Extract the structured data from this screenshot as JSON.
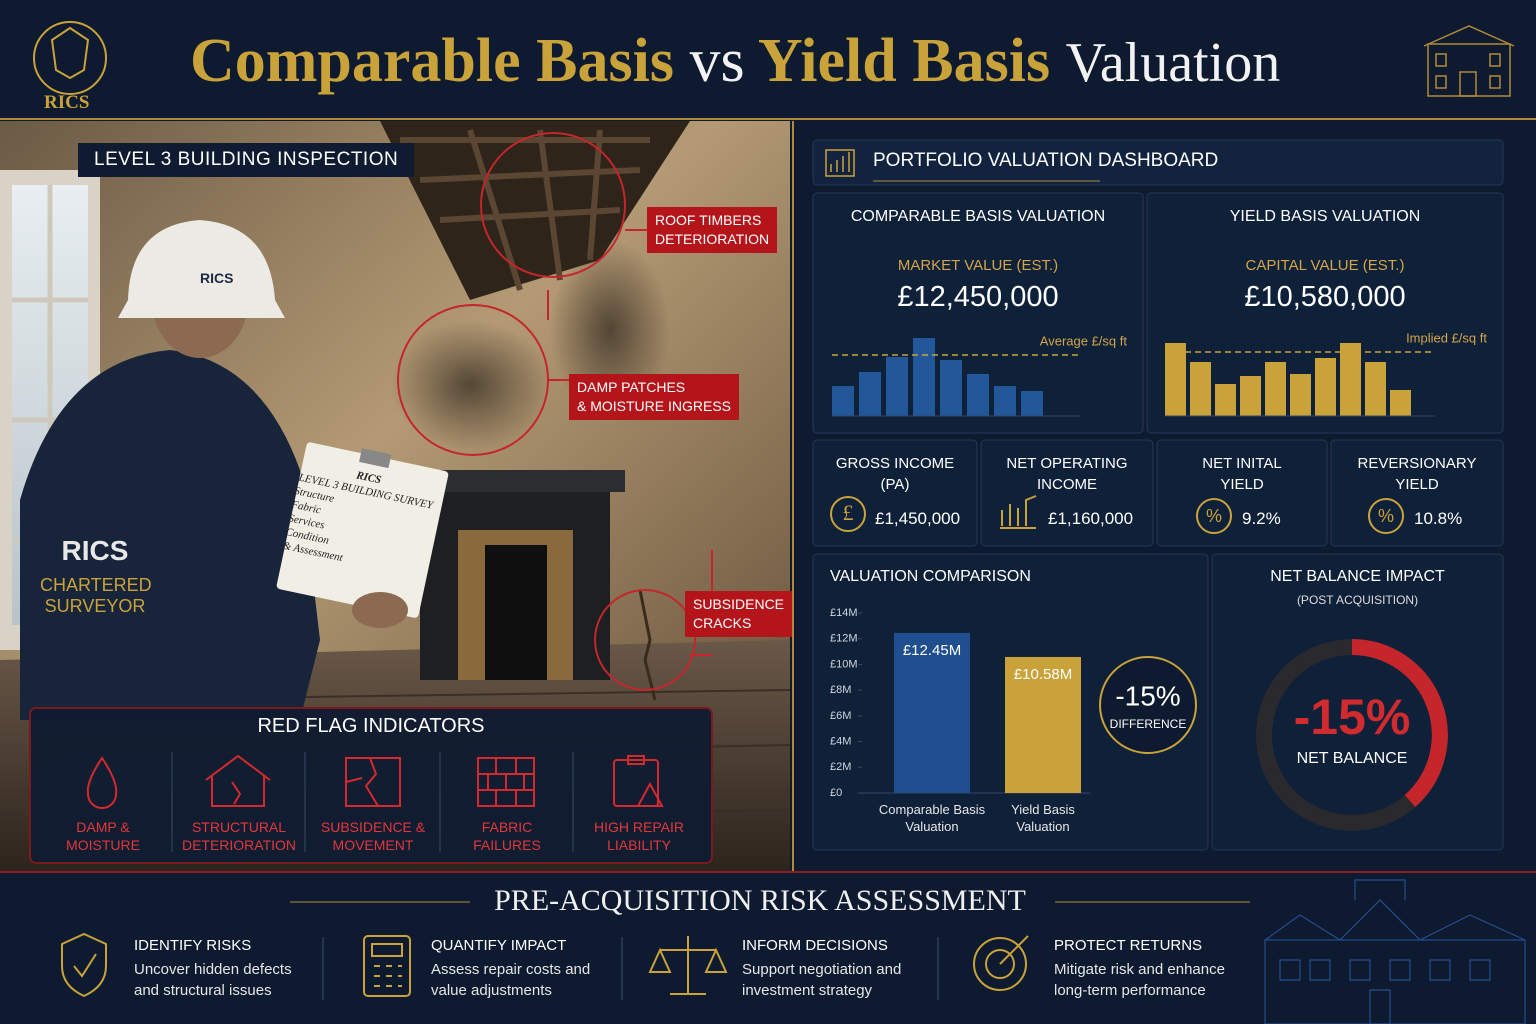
{
  "header": {
    "logo": "RICS",
    "title_a": "Comparable Basis",
    "title_b": "vs",
    "title_c": "Yield Basis",
    "title_d": "Valuation"
  },
  "inspection": {
    "badge": "LEVEL 3 BUILDING INSPECTION",
    "callouts": [
      {
        "lines": [
          "ROOF TIMBERS",
          "DETERIORATION"
        ]
      },
      {
        "lines": [
          "DAMP PATCHES",
          "& MOISTURE INGRESS"
        ]
      },
      {
        "lines": [
          "SUBSIDENCE",
          "CRACKS"
        ]
      }
    ],
    "photo_text": {
      "helmet": "RICS",
      "jacket": [
        "RICS",
        "CHARTERED",
        "SURVEYOR"
      ],
      "clipboard": [
        "RICS",
        "LEVEL 3 BUILDING SURVEY",
        "Structure",
        "Fabric",
        "Services",
        "Condition",
        "& Assessment"
      ]
    }
  },
  "red_flags": {
    "title": "RED FLAG INDICATORS",
    "items": [
      {
        "lines": [
          "DAMP &",
          "MOISTURE"
        ]
      },
      {
        "lines": [
          "STRUCTURAL",
          "DETERIORATION"
        ]
      },
      {
        "lines": [
          "SUBSIDENCE &",
          "MOVEMENT"
        ]
      },
      {
        "lines": [
          "FABRIC",
          "FAILURES"
        ]
      },
      {
        "lines": [
          "HIGH REPAIR",
          "LIABILITY"
        ]
      }
    ]
  },
  "dashboard": {
    "title": "PORTFOLIO VALUATION DASHBOARD",
    "kpis": [
      {
        "lines": [
          "GROSS INCOME",
          "(PA)"
        ],
        "value": "£1,450,000"
      },
      {
        "lines": [
          "NET OPERATING",
          "INCOME"
        ],
        "value": "£1,160,000"
      },
      {
        "lines": [
          "NET INITAL",
          "YIELD"
        ],
        "value": "9.2%"
      },
      {
        "lines": [
          "REVERSIONARY",
          "YIELD"
        ],
        "value": "10.8%"
      }
    ],
    "net_balance": {
      "title": "NET BALANCE IMPACT",
      "subtitle": "(POST ACQUISITION)",
      "value": "-15%",
      "label": "NET BALANCE"
    }
  },
  "chart_data": [
    {
      "type": "bar",
      "title": "COMPARABLE BASIS VALUATION",
      "subtitle": "MARKET VALUE (EST.)",
      "headline": "£12,450,000",
      "values": [
        30,
        44,
        59,
        78,
        56,
        42,
        30,
        25
      ],
      "color": "#22579a",
      "ylim": [
        0,
        90
      ],
      "reference_line": {
        "value": 61,
        "label": "Average £/sq ft"
      }
    },
    {
      "type": "bar",
      "title": "YIELD BASIS VALUATION",
      "subtitle": "CAPITAL VALUE (EST.)",
      "headline": "£10,580,000",
      "values": [
        73,
        54,
        32,
        40,
        54,
        42,
        58,
        73,
        54,
        26
      ],
      "color": "#c9a23a",
      "ylim": [
        0,
        90
      ],
      "reference_line": {
        "value": 64,
        "label": "Implied £/sq ft"
      }
    },
    {
      "type": "bar",
      "title": "VALUATION COMPARISON",
      "categories": [
        "Comparable Basis Valuation",
        "Yield Basis Valuation"
      ],
      "values": [
        12.45,
        10.58
      ],
      "value_labels": [
        "£12.45M",
        "£10.58M"
      ],
      "colors": [
        "#1f4f8e",
        "#c9a23a"
      ],
      "ylim": [
        0,
        14
      ],
      "yticks": [
        {
          "value": 0,
          "label": "£0"
        },
        {
          "value": 2,
          "label": "£2M"
        },
        {
          "value": 4,
          "label": "£4M"
        },
        {
          "value": 6,
          "label": "£6M"
        },
        {
          "value": 8,
          "label": "£8M"
        },
        {
          "value": 10,
          "label": "£10M"
        },
        {
          "value": 12,
          "label": "£12M"
        },
        {
          "value": 14,
          "label": "£14M"
        }
      ],
      "annotation": {
        "value": "-15%",
        "label": "DIFFERENCE"
      }
    }
  ],
  "footer": {
    "title": "PRE-ACQUISITION RISK ASSESSMENT",
    "items": [
      {
        "heading": "IDENTIFY RISKS",
        "lines": [
          "Uncover hidden defects",
          "and structural issues"
        ]
      },
      {
        "heading": "QUANTIFY IMPACT",
        "lines": [
          "Assess repair costs and",
          "value adjustments"
        ]
      },
      {
        "heading": "INFORM DECISIONS",
        "lines": [
          "Support negotiation and",
          "investment strategy"
        ]
      },
      {
        "heading": "PROTECT RETURNS",
        "lines": [
          "Mitigate risk and enhance",
          "long-term performance"
        ]
      }
    ]
  }
}
